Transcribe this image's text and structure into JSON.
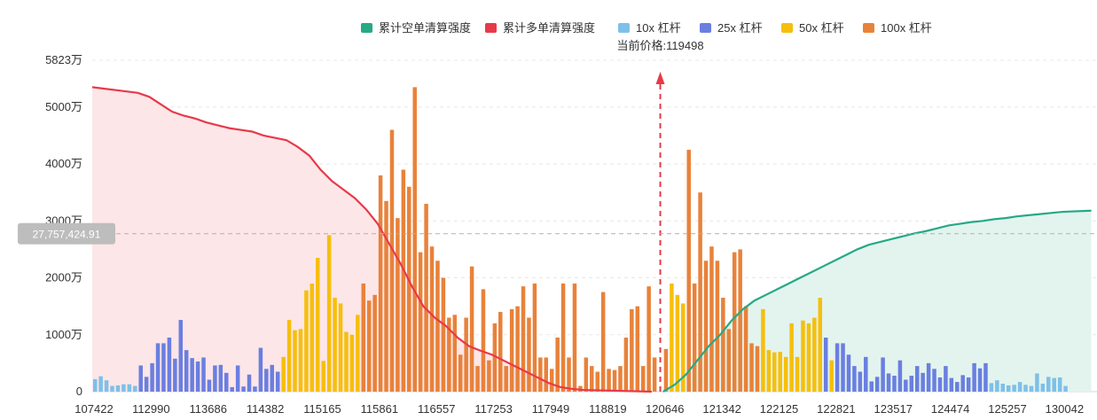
{
  "chart_data": {
    "type": "bar",
    "legend": [
      {
        "name": "累计空单清算强度",
        "color": "#26a985",
        "shape": "rect"
      },
      {
        "name": "累计多单清算强度",
        "color": "#e8394a",
        "shape": "rect"
      },
      {
        "name": "10x 杠杆",
        "color": "#7ec0e8",
        "shape": "rect"
      },
      {
        "name": "25x 杠杆",
        "color": "#6a7fe0",
        "shape": "rect"
      },
      {
        "name": "50x 杠杆",
        "color": "#f6bf0c",
        "shape": "rect"
      },
      {
        "name": "100x 杠杆",
        "color": "#e8823a",
        "shape": "rect"
      }
    ],
    "current_price_label": "当前价格:119498",
    "current_price_index": 99,
    "cursor_label": "27,757,424.91",
    "cursor_value": 27757424.91,
    "yaxis": {
      "max": 58230000,
      "ticks": [
        {
          "value": 0,
          "label": "0"
        },
        {
          "value": 10000000,
          "label": "1000万"
        },
        {
          "value": 20000000,
          "label": "2000万"
        },
        {
          "value": 30000000,
          "label": "3000万"
        },
        {
          "value": 40000000,
          "label": "4000万"
        },
        {
          "value": 50000000,
          "label": "5000万"
        },
        {
          "value": 58230000,
          "label": "5823万"
        }
      ]
    },
    "xaxis": {
      "tick_labels": [
        {
          "index": 0,
          "label": "107422"
        },
        {
          "index": 10,
          "label": "112990"
        },
        {
          "index": 20,
          "label": "113686"
        },
        {
          "index": 30,
          "label": "114382"
        },
        {
          "index": 40,
          "label": "115165"
        },
        {
          "index": 50,
          "label": "115861"
        },
        {
          "index": 60,
          "label": "116557"
        },
        {
          "index": 70,
          "label": "117253"
        },
        {
          "index": 80,
          "label": "117949"
        },
        {
          "index": 90,
          "label": "118819"
        },
        {
          "index": 100,
          "label": "120646"
        },
        {
          "index": 110,
          "label": "121342"
        },
        {
          "index": 120,
          "label": "122125"
        },
        {
          "index": 130,
          "label": "122821"
        },
        {
          "index": 140,
          "label": "123517"
        },
        {
          "index": 150,
          "label": "124474"
        },
        {
          "index": 160,
          "label": "125257"
        },
        {
          "index": 170,
          "label": "130042"
        }
      ]
    },
    "bar_count": 176,
    "bars": [
      {
        "i": 0,
        "v": 2.2,
        "c": "10x"
      },
      {
        "i": 1,
        "v": 2.7,
        "c": "10x"
      },
      {
        "i": 2,
        "v": 2.0,
        "c": "10x"
      },
      {
        "i": 3,
        "v": 1.0,
        "c": "10x"
      },
      {
        "i": 4,
        "v": 1.1,
        "c": "10x"
      },
      {
        "i": 5,
        "v": 1.3,
        "c": "10x"
      },
      {
        "i": 6,
        "v": 1.3,
        "c": "10x"
      },
      {
        "i": 7,
        "v": 1.0,
        "c": "10x"
      },
      {
        "i": 8,
        "v": 4.6,
        "c": "25x"
      },
      {
        "i": 9,
        "v": 2.6,
        "c": "25x"
      },
      {
        "i": 10,
        "v": 5.0,
        "c": "25x"
      },
      {
        "i": 11,
        "v": 8.5,
        "c": "25x"
      },
      {
        "i": 12,
        "v": 8.5,
        "c": "25x"
      },
      {
        "i": 13,
        "v": 9.5,
        "c": "25x"
      },
      {
        "i": 14,
        "v": 5.8,
        "c": "25x"
      },
      {
        "i": 15,
        "v": 12.6,
        "c": "25x"
      },
      {
        "i": 16,
        "v": 7.3,
        "c": "25x"
      },
      {
        "i": 17,
        "v": 5.9,
        "c": "25x"
      },
      {
        "i": 18,
        "v": 5.3,
        "c": "25x"
      },
      {
        "i": 19,
        "v": 6.0,
        "c": "25x"
      },
      {
        "i": 20,
        "v": 2.1,
        "c": "25x"
      },
      {
        "i": 21,
        "v": 4.6,
        "c": "25x"
      },
      {
        "i": 22,
        "v": 4.7,
        "c": "25x"
      },
      {
        "i": 23,
        "v": 3.3,
        "c": "25x"
      },
      {
        "i": 24,
        "v": 0.8,
        "c": "25x"
      },
      {
        "i": 25,
        "v": 4.6,
        "c": "25x"
      },
      {
        "i": 26,
        "v": 0.9,
        "c": "25x"
      },
      {
        "i": 27,
        "v": 3.0,
        "c": "25x"
      },
      {
        "i": 28,
        "v": 0.9,
        "c": "25x"
      },
      {
        "i": 29,
        "v": 7.7,
        "c": "25x"
      },
      {
        "i": 30,
        "v": 4.0,
        "c": "25x"
      },
      {
        "i": 31,
        "v": 4.7,
        "c": "25x"
      },
      {
        "i": 32,
        "v": 3.5,
        "c": "25x"
      },
      {
        "i": 33,
        "v": 6.1,
        "c": "50x"
      },
      {
        "i": 34,
        "v": 12.6,
        "c": "50x"
      },
      {
        "i": 35,
        "v": 10.8,
        "c": "50x"
      },
      {
        "i": 36,
        "v": 11.0,
        "c": "50x"
      },
      {
        "i": 37,
        "v": 17.8,
        "c": "50x"
      },
      {
        "i": 38,
        "v": 19.0,
        "c": "50x"
      },
      {
        "i": 39,
        "v": 23.5,
        "c": "50x"
      },
      {
        "i": 40,
        "v": 5.4,
        "c": "50x"
      },
      {
        "i": 41,
        "v": 27.5,
        "c": "50x"
      },
      {
        "i": 42,
        "v": 16.5,
        "c": "50x"
      },
      {
        "i": 43,
        "v": 15.5,
        "c": "50x"
      },
      {
        "i": 44,
        "v": 10.5,
        "c": "50x"
      },
      {
        "i": 45,
        "v": 10.0,
        "c": "50x"
      },
      {
        "i": 46,
        "v": 13.5,
        "c": "50x"
      },
      {
        "i": 47,
        "v": 19.0,
        "c": "100x"
      },
      {
        "i": 48,
        "v": 16.0,
        "c": "100x"
      },
      {
        "i": 49,
        "v": 17.0,
        "c": "100x"
      },
      {
        "i": 50,
        "v": 38.0,
        "c": "100x"
      },
      {
        "i": 51,
        "v": 33.5,
        "c": "100x"
      },
      {
        "i": 52,
        "v": 46.0,
        "c": "100x"
      },
      {
        "i": 53,
        "v": 30.5,
        "c": "100x"
      },
      {
        "i": 54,
        "v": 39.0,
        "c": "100x"
      },
      {
        "i": 55,
        "v": 36.0,
        "c": "100x"
      },
      {
        "i": 56,
        "v": 53.5,
        "c": "100x"
      },
      {
        "i": 57,
        "v": 24.5,
        "c": "100x"
      },
      {
        "i": 58,
        "v": 33.0,
        "c": "100x"
      },
      {
        "i": 59,
        "v": 25.5,
        "c": "100x"
      },
      {
        "i": 60,
        "v": 23.0,
        "c": "100x"
      },
      {
        "i": 61,
        "v": 20.0,
        "c": "100x"
      },
      {
        "i": 62,
        "v": 13.0,
        "c": "100x"
      },
      {
        "i": 63,
        "v": 13.5,
        "c": "100x"
      },
      {
        "i": 64,
        "v": 6.5,
        "c": "100x"
      },
      {
        "i": 65,
        "v": 13.0,
        "c": "100x"
      },
      {
        "i": 66,
        "v": 22.0,
        "c": "100x"
      },
      {
        "i": 67,
        "v": 4.5,
        "c": "100x"
      },
      {
        "i": 68,
        "v": 18.0,
        "c": "100x"
      },
      {
        "i": 69,
        "v": 5.5,
        "c": "100x"
      },
      {
        "i": 70,
        "v": 12.0,
        "c": "100x"
      },
      {
        "i": 71,
        "v": 14.0,
        "c": "100x"
      },
      {
        "i": 72,
        "v": 4.5,
        "c": "100x"
      },
      {
        "i": 73,
        "v": 14.5,
        "c": "100x"
      },
      {
        "i": 74,
        "v": 15.0,
        "c": "100x"
      },
      {
        "i": 75,
        "v": 18.5,
        "c": "100x"
      },
      {
        "i": 76,
        "v": 13.0,
        "c": "100x"
      },
      {
        "i": 77,
        "v": 19.0,
        "c": "100x"
      },
      {
        "i": 78,
        "v": 6.0,
        "c": "100x"
      },
      {
        "i": 79,
        "v": 6.0,
        "c": "100x"
      },
      {
        "i": 80,
        "v": 4.0,
        "c": "100x"
      },
      {
        "i": 81,
        "v": 9.5,
        "c": "100x"
      },
      {
        "i": 82,
        "v": 19.0,
        "c": "100x"
      },
      {
        "i": 83,
        "v": 6.0,
        "c": "100x"
      },
      {
        "i": 84,
        "v": 19.0,
        "c": "100x"
      },
      {
        "i": 85,
        "v": 1.0,
        "c": "100x"
      },
      {
        "i": 86,
        "v": 6.0,
        "c": "100x"
      },
      {
        "i": 87,
        "v": 4.5,
        "c": "100x"
      },
      {
        "i": 88,
        "v": 3.5,
        "c": "100x"
      },
      {
        "i": 89,
        "v": 17.5,
        "c": "100x"
      },
      {
        "i": 90,
        "v": 4.0,
        "c": "100x"
      },
      {
        "i": 91,
        "v": 3.8,
        "c": "100x"
      },
      {
        "i": 92,
        "v": 4.5,
        "c": "100x"
      },
      {
        "i": 93,
        "v": 9.5,
        "c": "100x"
      },
      {
        "i": 94,
        "v": 14.5,
        "c": "100x"
      },
      {
        "i": 95,
        "v": 15.0,
        "c": "100x"
      },
      {
        "i": 96,
        "v": 4.5,
        "c": "100x"
      },
      {
        "i": 97,
        "v": 18.5,
        "c": "100x"
      },
      {
        "i": 98,
        "v": 6.0,
        "c": "100x"
      },
      {
        "i": 100,
        "v": 7.5,
        "c": "100x"
      },
      {
        "i": 101,
        "v": 19.0,
        "c": "50x"
      },
      {
        "i": 102,
        "v": 17.0,
        "c": "50x"
      },
      {
        "i": 103,
        "v": 15.5,
        "c": "50x"
      },
      {
        "i": 104,
        "v": 42.5,
        "c": "100x"
      },
      {
        "i": 105,
        "v": 19.0,
        "c": "100x"
      },
      {
        "i": 106,
        "v": 35.0,
        "c": "100x"
      },
      {
        "i": 107,
        "v": 23.0,
        "c": "100x"
      },
      {
        "i": 108,
        "v": 25.5,
        "c": "100x"
      },
      {
        "i": 109,
        "v": 23.0,
        "c": "100x"
      },
      {
        "i": 110,
        "v": 16.5,
        "c": "100x"
      },
      {
        "i": 111,
        "v": 11.0,
        "c": "100x"
      },
      {
        "i": 112,
        "v": 24.5,
        "c": "100x"
      },
      {
        "i": 113,
        "v": 25.0,
        "c": "100x"
      },
      {
        "i": 114,
        "v": 15.0,
        "c": "100x"
      },
      {
        "i": 115,
        "v": 8.5,
        "c": "100x"
      },
      {
        "i": 116,
        "v": 8.0,
        "c": "100x"
      },
      {
        "i": 117,
        "v": 14.5,
        "c": "50x"
      },
      {
        "i": 118,
        "v": 7.3,
        "c": "50x"
      },
      {
        "i": 119,
        "v": 6.9,
        "c": "50x"
      },
      {
        "i": 120,
        "v": 7.0,
        "c": "50x"
      },
      {
        "i": 121,
        "v": 6.1,
        "c": "50x"
      },
      {
        "i": 122,
        "v": 12.0,
        "c": "50x"
      },
      {
        "i": 123,
        "v": 6.1,
        "c": "50x"
      },
      {
        "i": 124,
        "v": 12.5,
        "c": "50x"
      },
      {
        "i": 125,
        "v": 12.0,
        "c": "50x"
      },
      {
        "i": 126,
        "v": 13.0,
        "c": "50x"
      },
      {
        "i": 127,
        "v": 16.5,
        "c": "50x"
      },
      {
        "i": 128,
        "v": 9.5,
        "c": "25x"
      },
      {
        "i": 129,
        "v": 5.5,
        "c": "50x"
      },
      {
        "i": 130,
        "v": 8.5,
        "c": "25x"
      },
      {
        "i": 131,
        "v": 8.5,
        "c": "25x"
      },
      {
        "i": 132,
        "v": 6.5,
        "c": "25x"
      },
      {
        "i": 133,
        "v": 4.5,
        "c": "25x"
      },
      {
        "i": 134,
        "v": 3.5,
        "c": "25x"
      },
      {
        "i": 135,
        "v": 6.1,
        "c": "25x"
      },
      {
        "i": 136,
        "v": 1.8,
        "c": "25x"
      },
      {
        "i": 137,
        "v": 2.6,
        "c": "25x"
      },
      {
        "i": 138,
        "v": 6.0,
        "c": "25x"
      },
      {
        "i": 139,
        "v": 3.2,
        "c": "25x"
      },
      {
        "i": 140,
        "v": 2.8,
        "c": "25x"
      },
      {
        "i": 141,
        "v": 5.5,
        "c": "25x"
      },
      {
        "i": 142,
        "v": 2.1,
        "c": "25x"
      },
      {
        "i": 143,
        "v": 2.8,
        "c": "25x"
      },
      {
        "i": 144,
        "v": 4.5,
        "c": "25x"
      },
      {
        "i": 145,
        "v": 3.3,
        "c": "25x"
      },
      {
        "i": 146,
        "v": 5.0,
        "c": "25x"
      },
      {
        "i": 147,
        "v": 4.0,
        "c": "25x"
      },
      {
        "i": 148,
        "v": 2.5,
        "c": "25x"
      },
      {
        "i": 149,
        "v": 4.5,
        "c": "25x"
      },
      {
        "i": 150,
        "v": 2.4,
        "c": "25x"
      },
      {
        "i": 151,
        "v": 1.7,
        "c": "25x"
      },
      {
        "i": 152,
        "v": 2.9,
        "c": "25x"
      },
      {
        "i": 153,
        "v": 2.5,
        "c": "25x"
      },
      {
        "i": 154,
        "v": 5.0,
        "c": "25x"
      },
      {
        "i": 155,
        "v": 4.1,
        "c": "25x"
      },
      {
        "i": 156,
        "v": 5.0,
        "c": "25x"
      },
      {
        "i": 157,
        "v": 1.5,
        "c": "10x"
      },
      {
        "i": 158,
        "v": 2.0,
        "c": "10x"
      },
      {
        "i": 159,
        "v": 1.4,
        "c": "10x"
      },
      {
        "i": 160,
        "v": 1.1,
        "c": "10x"
      },
      {
        "i": 161,
        "v": 1.2,
        "c": "10x"
      },
      {
        "i": 162,
        "v": 1.7,
        "c": "10x"
      },
      {
        "i": 163,
        "v": 1.2,
        "c": "10x"
      },
      {
        "i": 164,
        "v": 1.0,
        "c": "10x"
      },
      {
        "i": 165,
        "v": 3.2,
        "c": "10x"
      },
      {
        "i": 166,
        "v": 1.4,
        "c": "10x"
      },
      {
        "i": 167,
        "v": 2.6,
        "c": "10x"
      },
      {
        "i": 168,
        "v": 2.4,
        "c": "10x"
      },
      {
        "i": 169,
        "v": 2.5,
        "c": "10x"
      },
      {
        "i": 170,
        "v": 1.0,
        "c": "10x"
      }
    ],
    "bar_value_unit": 1000000,
    "long_curve": [
      [
        0,
        53.5
      ],
      [
        4,
        53.0
      ],
      [
        8,
        52.5
      ],
      [
        10,
        51.8
      ],
      [
        12,
        50.5
      ],
      [
        14,
        49.2
      ],
      [
        16,
        48.5
      ],
      [
        18,
        48.0
      ],
      [
        20,
        47.3
      ],
      [
        22,
        46.8
      ],
      [
        24,
        46.3
      ],
      [
        26,
        46.0
      ],
      [
        28,
        45.7
      ],
      [
        30,
        45.0
      ],
      [
        32,
        44.6
      ],
      [
        34,
        44.2
      ],
      [
        36,
        43.0
      ],
      [
        38,
        41.5
      ],
      [
        40,
        39.0
      ],
      [
        42,
        37.0
      ],
      [
        44,
        35.5
      ],
      [
        46,
        34.0
      ],
      [
        48,
        32.0
      ],
      [
        50,
        29.5
      ],
      [
        52,
        26.0
      ],
      [
        54,
        22.5
      ],
      [
        56,
        18.5
      ],
      [
        58,
        15.0
      ],
      [
        60,
        13.0
      ],
      [
        62,
        11.5
      ],
      [
        64,
        9.5
      ],
      [
        66,
        8.0
      ],
      [
        68,
        7.2
      ],
      [
        70,
        6.5
      ],
      [
        72,
        5.5
      ],
      [
        74,
        4.5
      ],
      [
        76,
        3.5
      ],
      [
        78,
        2.5
      ],
      [
        80,
        1.5
      ],
      [
        82,
        0.8
      ],
      [
        84,
        0.5
      ],
      [
        86,
        0.3
      ],
      [
        98,
        0
      ]
    ],
    "short_curve": [
      [
        100,
        0
      ],
      [
        102,
        1.2
      ],
      [
        104,
        3.0
      ],
      [
        106,
        5.5
      ],
      [
        108,
        8.0
      ],
      [
        110,
        10.0
      ],
      [
        112,
        12.5
      ],
      [
        114,
        14.5
      ],
      [
        116,
        16.0
      ],
      [
        118,
        17.0
      ],
      [
        120,
        18.0
      ],
      [
        122,
        19.0
      ],
      [
        124,
        20.0
      ],
      [
        126,
        21.0
      ],
      [
        128,
        22.0
      ],
      [
        130,
        23.0
      ],
      [
        132,
        24.0
      ],
      [
        134,
        25.0
      ],
      [
        136,
        25.8
      ],
      [
        138,
        26.3
      ],
      [
        140,
        26.8
      ],
      [
        142,
        27.3
      ],
      [
        144,
        27.8
      ],
      [
        146,
        28.2
      ],
      [
        148,
        28.7
      ],
      [
        150,
        29.2
      ],
      [
        152,
        29.5
      ],
      [
        154,
        29.8
      ],
      [
        156,
        30.0
      ],
      [
        158,
        30.3
      ],
      [
        160,
        30.5
      ],
      [
        162,
        30.8
      ],
      [
        164,
        31.0
      ],
      [
        166,
        31.2
      ],
      [
        168,
        31.4
      ],
      [
        170,
        31.6
      ],
      [
        175,
        31.8
      ]
    ],
    "curve_value_unit": 1000000
  }
}
